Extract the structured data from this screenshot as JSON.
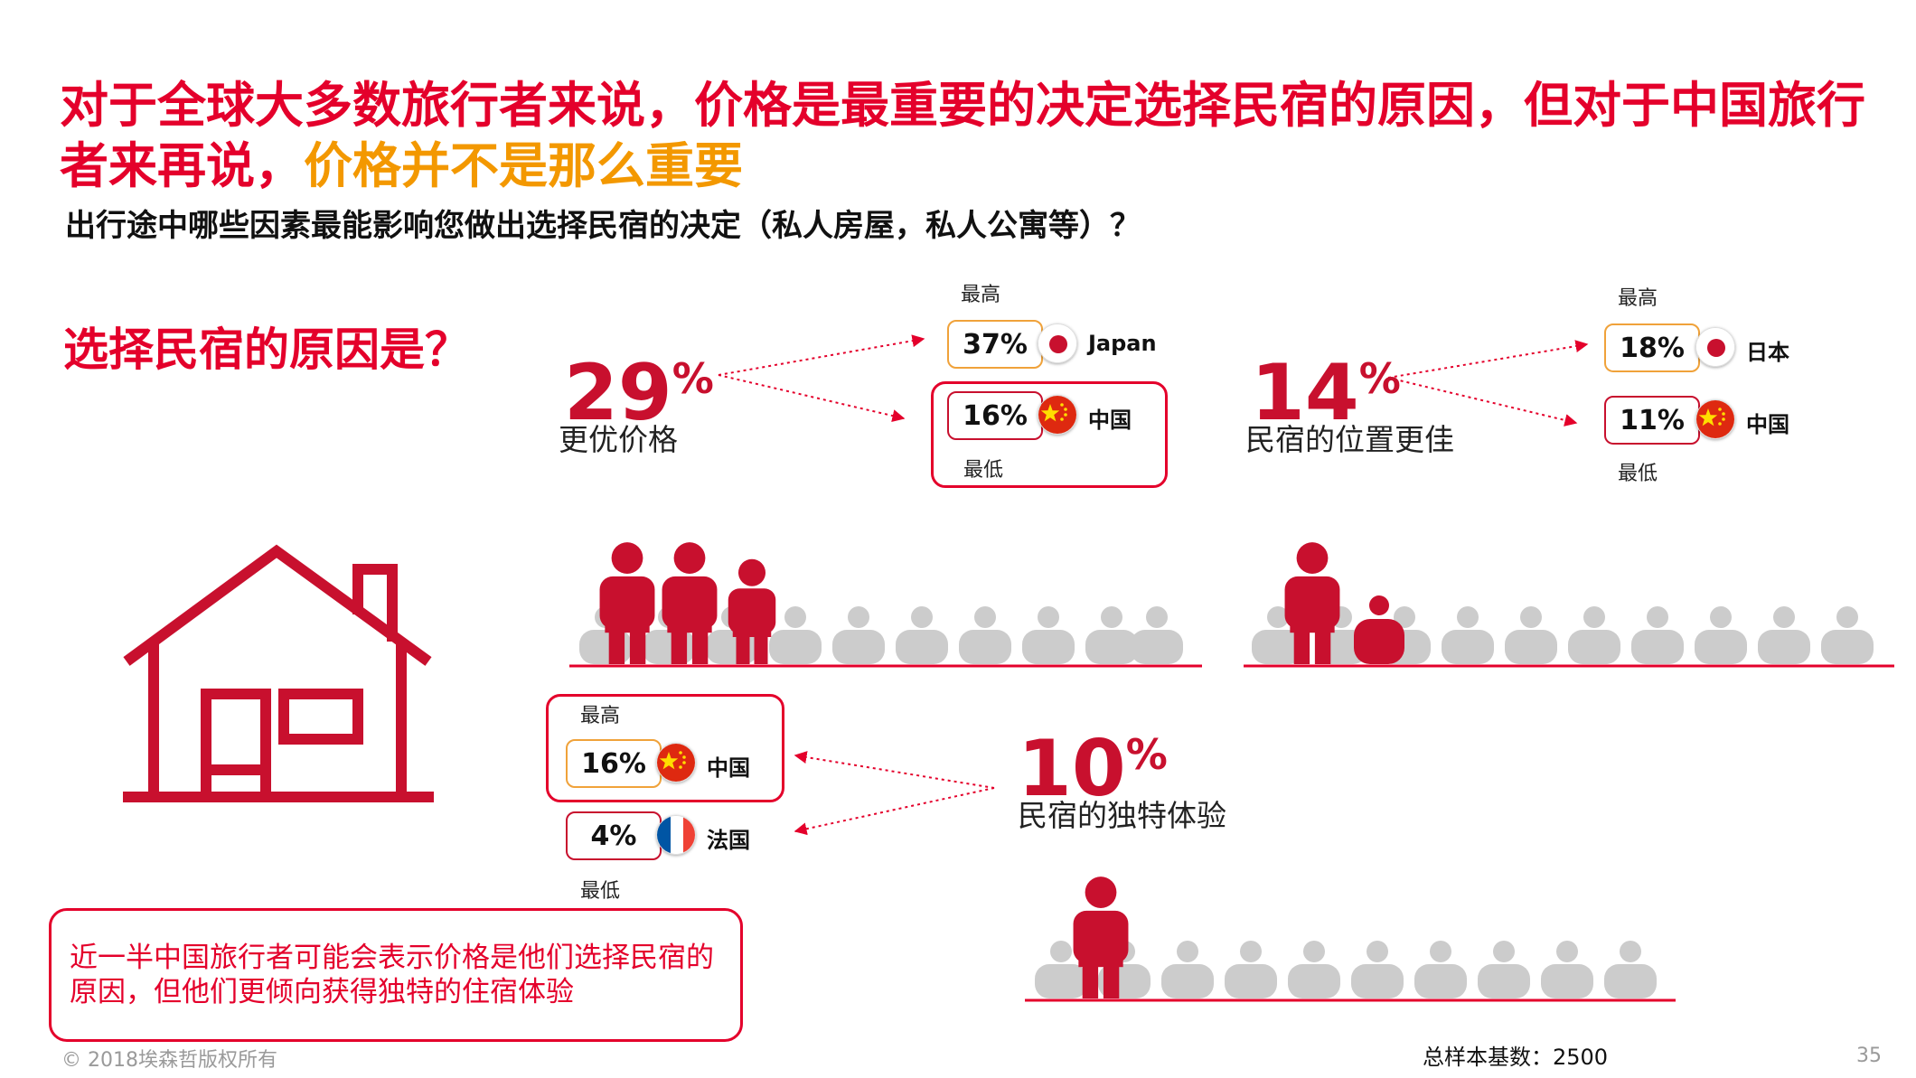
{
  "title": {
    "line1": "对于全球大多数旅行者来说，价格是最重要的决定选择民宿的原因，但对于中国旅行",
    "line2_prefix": "者来再说，",
    "line2_highlight": "价格并不是那么重要"
  },
  "subtitle": "出行途中哪些因素最能影响您做出选择民宿的决定（私人房屋，私人公寓等）？",
  "section_title": "选择民宿的原因是？",
  "stats": [
    {
      "value": "29",
      "unit": "%",
      "label": "更优价格",
      "figures_highlighted": 3,
      "highest": {
        "tag": "最高",
        "value": "37%",
        "country": "Japan",
        "flag": "japan-flag"
      },
      "lowest": {
        "tag": "最低",
        "value": "16%",
        "country": "中国",
        "flag": "china-flag"
      }
    },
    {
      "value": "14",
      "unit": "%",
      "label": "民宿的位置更佳",
      "figures_highlighted": 2,
      "highest": {
        "tag": "最高",
        "value": "18%",
        "country": "日本",
        "flag": "japan-flag"
      },
      "lowest": {
        "tag": "最低",
        "value": "11%",
        "country": "中国",
        "flag": "china-flag"
      }
    },
    {
      "value": "10",
      "unit": "%",
      "label": "民宿的独特体验",
      "figures_highlighted": 1,
      "highest": {
        "tag": "最高",
        "value": "16%",
        "country": "中国",
        "flag": "china-flag"
      },
      "lowest": {
        "tag": "最低",
        "value": "4%",
        "country": "法国",
        "flag": "france-flag"
      }
    }
  ],
  "note": {
    "line1": "近一半中国旅行者可能会表示价格是他们选择民宿的",
    "line2": "原因，但他们更倾向获得独特的住宿体验"
  },
  "footer": {
    "copyright": "© 2018埃森哲版权所有",
    "sample": "总样本基数：2500",
    "page": "35"
  },
  "colors": {
    "accent_red": "#e4002b",
    "figure_red": "#c8102e",
    "highlight_orange": "#f39800",
    "figure_gray": "#cccccc"
  }
}
